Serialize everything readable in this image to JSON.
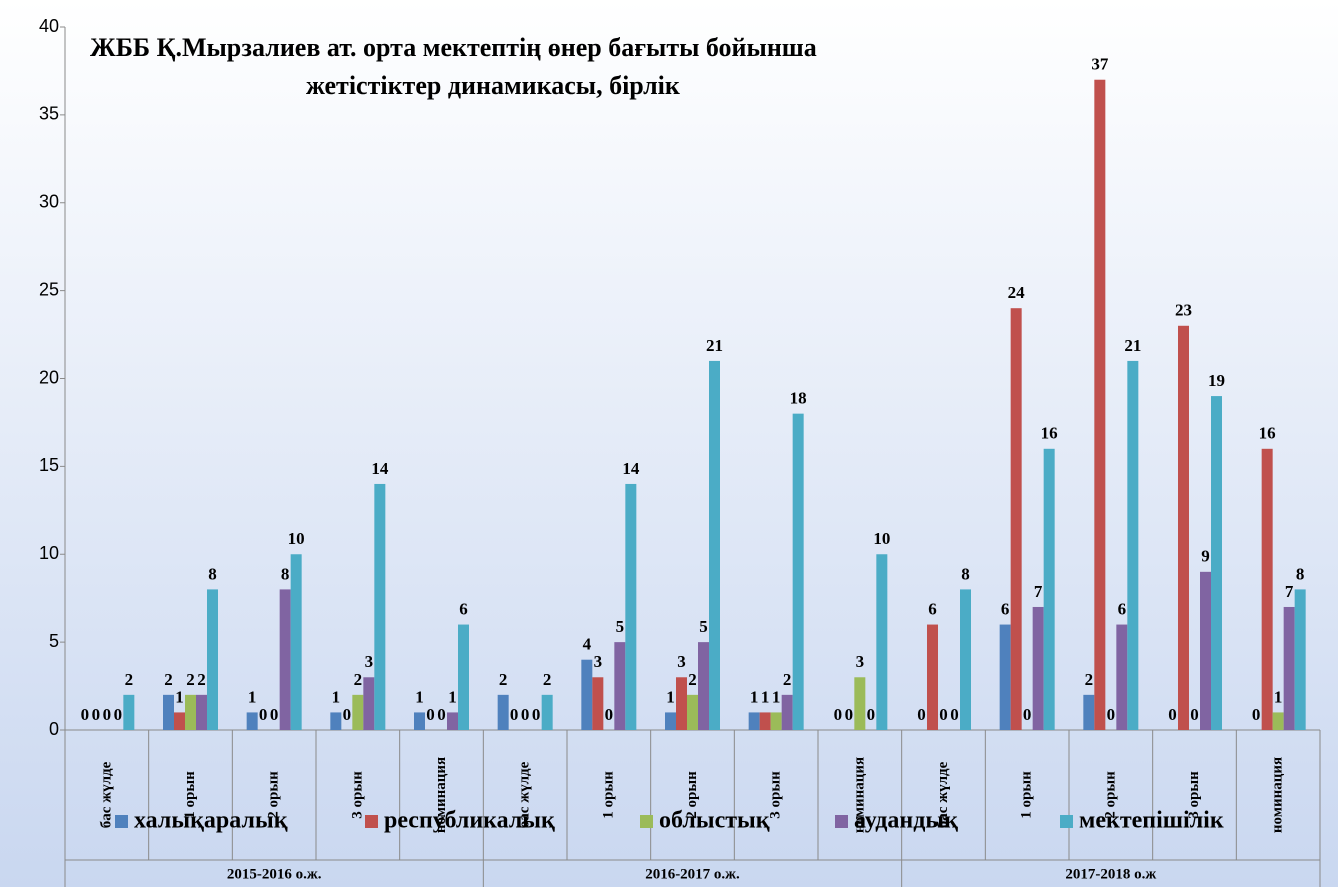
{
  "chart_data": {
    "type": "bar",
    "title": [
      "ЖББ  Қ.Мырзалиев ат. орта мектептің өнер бағыты бойынша",
      "жетістіктер динамикасы, бірлік"
    ],
    "groups": [
      {
        "name": "2015-2016 о.ж.",
        "categories": [
          "бас жүлде",
          "1 орын",
          "2 орын",
          "3 орын",
          "номинация"
        ]
      },
      {
        "name": "2016-2017 о.ж.",
        "categories": [
          "бас жүлде",
          "1 орын",
          "2 орын",
          "3 орын",
          "номинация"
        ]
      },
      {
        "name": "2017-2018 о.ж",
        "categories": [
          "бас жүлде",
          "1 орын",
          "2 орын",
          "3 орын",
          "номинация"
        ]
      }
    ],
    "series": [
      {
        "name": "халықаралық",
        "color": "#4f81bd",
        "values": [
          0,
          2,
          1,
          1,
          1,
          2,
          4,
          1,
          1,
          0,
          0,
          6,
          2,
          0,
          0
        ]
      },
      {
        "name": "республикалық",
        "color": "#c0504d",
        "values": [
          0,
          1,
          0,
          0,
          0,
          0,
          3,
          3,
          1,
          0,
          6,
          24,
          37,
          23,
          16
        ]
      },
      {
        "name": "облыстық",
        "color": "#9bbb59",
        "values": [
          0,
          2,
          0,
          2,
          0,
          0,
          0,
          2,
          1,
          3,
          0,
          0,
          0,
          0,
          1
        ]
      },
      {
        "name": "аудандық",
        "color": "#8064a2",
        "values": [
          0,
          2,
          8,
          3,
          1,
          0,
          5,
          5,
          2,
          0,
          0,
          7,
          6,
          9,
          7
        ]
      },
      {
        "name": "мектепішілік",
        "color": "#4bacc6",
        "values": [
          2,
          8,
          10,
          14,
          6,
          2,
          14,
          21,
          18,
          10,
          8,
          16,
          21,
          19,
          8
        ]
      }
    ],
    "ylim": [
      0,
      40
    ],
    "yticks": [
      0,
      5,
      10,
      15,
      20,
      25,
      30,
      35,
      40
    ],
    "grid": false,
    "legend": "bottom"
  }
}
